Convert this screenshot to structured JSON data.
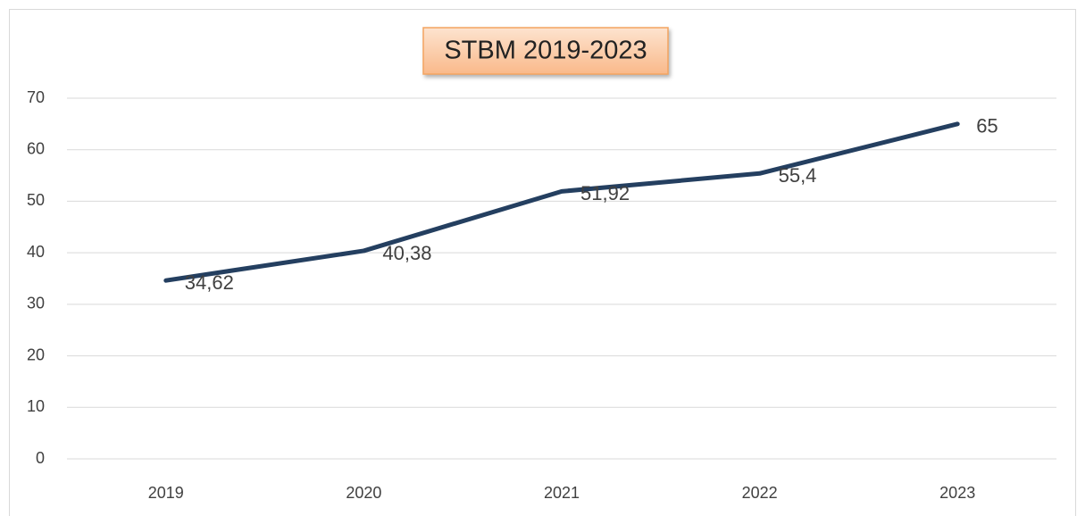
{
  "chart_data": {
    "type": "line",
    "title": "STBM 2019-2023",
    "categories": [
      "2019",
      "2020",
      "2021",
      "2022",
      "2023"
    ],
    "values": [
      34.62,
      40.38,
      51.92,
      55.4,
      65
    ],
    "value_labels": [
      "34,62",
      "40,38",
      "51,92",
      "55,4",
      "65"
    ],
    "color": "#243f60",
    "ylim": [
      0,
      70
    ],
    "yticks": [
      0,
      10,
      20,
      30,
      40,
      50,
      60,
      70
    ],
    "grid": true
  }
}
